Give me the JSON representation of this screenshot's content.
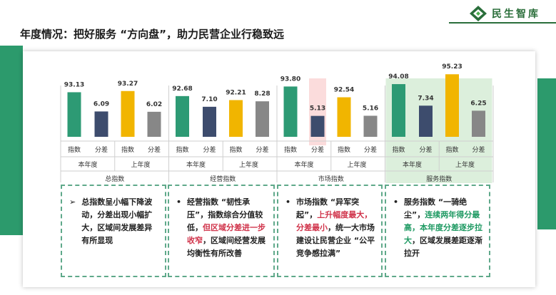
{
  "logo": {
    "text": "民生智库"
  },
  "title": "年度情况：把好服务 “方向盘”，助力民营企业行稳致远",
  "colors": {
    "index_current": "#2d9a74",
    "diff_current": "#3d4c6d",
    "index_prev": "#f1b500",
    "diff_prev": "#878787",
    "highlight_red": "#fbdcdc",
    "highlight_green": "#dcefdc"
  },
  "chart_data": {
    "type": "bar",
    "groups": [
      {
        "name": "总指数",
        "highlight": null,
        "bars": [
          {
            "year": "本年度",
            "metric": "指数",
            "value": 93.13,
            "label": "93.13"
          },
          {
            "year": "本年度",
            "metric": "分差",
            "value": 6.09,
            "label": "6.09"
          },
          {
            "year": "上年度",
            "metric": "指数",
            "value": 93.27,
            "label": "93.27"
          },
          {
            "year": "上年度",
            "metric": "分差",
            "value": 6.02,
            "label": "6.02"
          }
        ]
      },
      {
        "name": "经营指数",
        "highlight": null,
        "bars": [
          {
            "year": "本年度",
            "metric": "指数",
            "value": 92.68,
            "label": "92.68"
          },
          {
            "year": "本年度",
            "metric": "分差",
            "value": 7.1,
            "label": "7.10"
          },
          {
            "year": "上年度",
            "metric": "指数",
            "value": 92.21,
            "label": "92.21"
          },
          {
            "year": "上年度",
            "metric": "分差",
            "value": 8.28,
            "label": "8.28"
          }
        ]
      },
      {
        "name": "市场指数",
        "highlight": "red",
        "bars": [
          {
            "year": "本年度",
            "metric": "指数",
            "value": 93.8,
            "label": "93.80"
          },
          {
            "year": "本年度",
            "metric": "分差",
            "value": 5.13,
            "label": "5.13"
          },
          {
            "year": "上年度",
            "metric": "指数",
            "value": 92.54,
            "label": "92.54"
          },
          {
            "year": "上年度",
            "metric": "分差",
            "value": 5.16,
            "label": "5.16"
          }
        ]
      },
      {
        "name": "服务指数",
        "highlight": "green",
        "bars": [
          {
            "year": "本年度",
            "metric": "指数",
            "value": 94.08,
            "label": "94.08"
          },
          {
            "year": "本年度",
            "metric": "分差",
            "value": 7.34,
            "label": "7.34"
          },
          {
            "year": "上年度",
            "metric": "指数",
            "value": 95.23,
            "label": "95.23"
          },
          {
            "year": "上年度",
            "metric": "分差",
            "value": 6.25,
            "label": "6.25"
          }
        ]
      }
    ],
    "year_labels": [
      "本年度",
      "上年度"
    ],
    "metric_labels": [
      "指数",
      "分差"
    ]
  },
  "notes": [
    {
      "bullet": "➢",
      "parts": [
        {
          "text": "总指数呈小幅下降波动，分差出现小幅扩大，区域间发展差异有所显现",
          "style": ""
        }
      ]
    },
    {
      "bullet": "•",
      "parts": [
        {
          "text": "经营指数 “韧性承压”，指数综合分值较低，",
          "style": ""
        },
        {
          "text": "但区域分差进一步收窄",
          "style": "red"
        },
        {
          "text": "，区域间经营发展均衡性有所改善",
          "style": ""
        }
      ]
    },
    {
      "bullet": "•",
      "parts": [
        {
          "text": "市场指数 “异军突起”，",
          "style": ""
        },
        {
          "text": "上升幅度最大，分差最小",
          "style": "red"
        },
        {
          "text": "，统一大市场建设让民营企业 “公平竞争感拉满”",
          "style": ""
        }
      ]
    },
    {
      "bullet": "•",
      "parts": [
        {
          "text": "服务指数 “一骑绝尘”，",
          "style": ""
        },
        {
          "text": "连续两年得分最高，本年度分差逐步拉大",
          "style": "green"
        },
        {
          "text": "，区域发展差距逐渐拉开",
          "style": ""
        }
      ]
    }
  ]
}
